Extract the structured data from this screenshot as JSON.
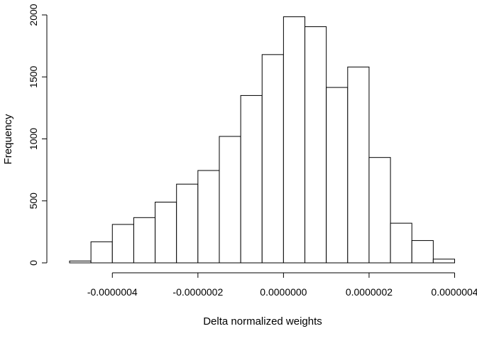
{
  "chart_data": {
    "type": "bar",
    "title": "",
    "xlabel": "Delta normalized weights",
    "ylabel": "Frequency",
    "bin_edges": [
      -5e-07,
      -4.5e-07,
      -4e-07,
      -3.5e-07,
      -3e-07,
      -2.5e-07,
      -2e-07,
      -1.5e-07,
      -1e-07,
      -5e-08,
      0,
      5e-08,
      1e-07,
      1.5e-07,
      2e-07,
      2.5e-07,
      3e-07,
      3.5e-07,
      4e-07
    ],
    "values": [
      15,
      170,
      310,
      365,
      490,
      635,
      745,
      1020,
      1350,
      1680,
      1985,
      1905,
      1415,
      1580,
      850,
      320,
      180,
      30
    ],
    "xlim": [
      -5e-07,
      4e-07
    ],
    "ylim": [
      0,
      2000
    ],
    "x_ticks": [
      -4e-07,
      -2e-07,
      0,
      2e-07,
      4e-07
    ],
    "x_tick_labels": [
      "-0.0000004",
      "-0.0000002",
      "0.0000000",
      "0.0000002",
      "0.0000004"
    ],
    "y_ticks": [
      0,
      500,
      1000,
      1500,
      2000
    ],
    "y_tick_labels": [
      "0",
      "500",
      "1000",
      "1500",
      "2000"
    ],
    "grid": false,
    "legend": "none"
  }
}
